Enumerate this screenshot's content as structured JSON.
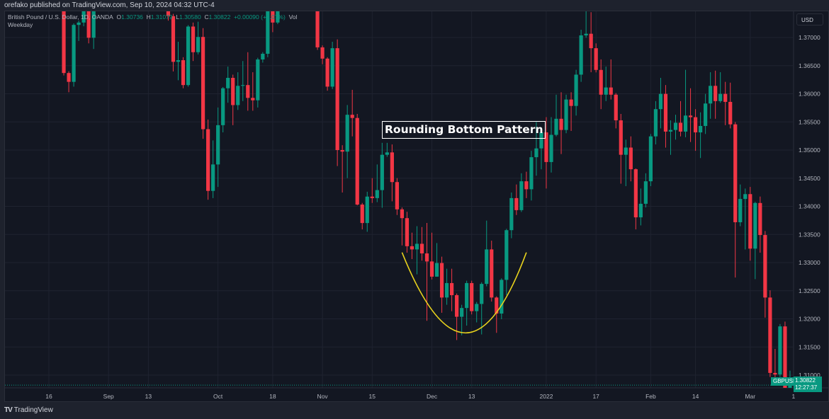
{
  "publisher_line": "orefako published on TradingView.com, Sep 10, 2024 04:32 UTC-4",
  "legend": {
    "symbol_desc": "British Pound / U.S. Dollar, 1D, OANDA",
    "o_label": "O",
    "o": "1.30736",
    "h_label": "H",
    "h": "1.31079",
    "l_label": "L",
    "l": "1.30580",
    "c_label": "C",
    "c": "1.30822",
    "change": "+0.00090 (+0.07%)",
    "vol_label": "Vol",
    "session": "Weekday"
  },
  "currency_button": "USD",
  "symbol_tag": "GBPUSD",
  "last_price": "1.30822",
  "countdown": "12:27:37",
  "annotation": "Rounding Bottom Pattern",
  "brand": "TradingView",
  "colors": {
    "up": "#089981",
    "down": "#f23645",
    "curve": "#e8d21d",
    "background": "#131722",
    "grid": "#1f2330"
  },
  "chart_data": {
    "type": "candlestick",
    "symbol": "GBPUSD",
    "interval": "1D",
    "ylim": [
      1.3072,
      1.3748
    ],
    "y_ticks": [
      "1.37000",
      "1.36500",
      "1.36000",
      "1.35500",
      "1.35000",
      "1.34500",
      "1.34000",
      "1.33500",
      "1.33000",
      "1.32500",
      "1.32000",
      "1.31500",
      "1.31000"
    ],
    "x_ticks": [
      {
        "label": "16",
        "at": -1
      },
      {
        "label": "Sep",
        "at": 11
      },
      {
        "label": "13",
        "at": 19
      },
      {
        "label": "Oct",
        "at": 33
      },
      {
        "label": "18",
        "at": 44
      },
      {
        "label": "Nov",
        "at": 54
      },
      {
        "label": "15",
        "at": 64
      },
      {
        "label": "Dec",
        "at": 76
      },
      {
        "label": "13",
        "at": 84
      },
      {
        "label": "2022",
        "at": 99
      },
      {
        "label": "17",
        "at": 109
      },
      {
        "label": "Feb",
        "at": 120
      },
      {
        "label": "14",
        "at": 129
      },
      {
        "label": "Mar",
        "at": 140
      },
      {
        "label": "1",
        "at": 148.7
      }
    ],
    "grid": true,
    "ohlc": [
      null,
      null,
      [
        1.3752,
        1.3755,
        1.36326,
        1.36369
      ],
      [
        1.36369,
        1.364,
        1.36027,
        1.36212
      ],
      [
        1.36212,
        1.3725,
        1.36127,
        1.37224
      ],
      [
        1.37224,
        1.373,
        1.36939,
        1.37266
      ],
      [
        1.37266,
        1.376,
        1.372,
        1.3752
      ],
      [
        1.3752,
        1.3755,
        1.36896,
        1.36996
      ],
      [
        1.36996,
        1.376,
        1.36796,
        1.3752
      ],
      null,
      null,
      null,
      null,
      null,
      null,
      null,
      null,
      null,
      null,
      null,
      null,
      null,
      null,
      [
        1.3752,
        1.3755,
        1.373,
        1.3738
      ],
      [
        1.3738,
        1.3742,
        1.36397,
        1.36568
      ],
      [
        1.36568,
        1.36924,
        1.3624,
        1.36597
      ],
      [
        1.36597,
        1.3665,
        1.36098,
        1.36155
      ],
      [
        1.36155,
        1.3722,
        1.36127,
        1.37195
      ],
      [
        1.37195,
        1.37266,
        1.36582,
        1.36739
      ],
      [
        1.36739,
        1.37281,
        1.367,
        1.3701
      ],
      [
        1.3701,
        1.37167,
        1.352,
        1.35371
      ],
      [
        1.35371,
        1.35542,
        1.34117,
        1.34274
      ],
      [
        1.34274,
        1.35171,
        1.34146,
        1.34744
      ],
      [
        1.34744,
        1.35756,
        1.34345,
        1.35442
      ],
      [
        1.35442,
        1.3612,
        1.35314,
        1.36098
      ],
      [
        1.36098,
        1.36483,
        1.35841,
        1.36283
      ],
      [
        1.36283,
        1.3634,
        1.35442,
        1.35799
      ],
      [
        1.35799,
        1.36383,
        1.35713,
        1.36141
      ],
      [
        1.36141,
        1.36582,
        1.3587,
        1.36155
      ],
      [
        1.36155,
        1.36739,
        1.35699,
        1.35927
      ],
      [
        1.35927,
        1.36383,
        1.35699,
        1.35884
      ],
      [
        1.35884,
        1.3664,
        1.35756,
        1.3661
      ],
      [
        1.3661,
        1.3674,
        1.36554,
        1.36711
      ],
      [
        1.36711,
        1.376,
        1.3665,
        1.3752
      ],
      [
        1.3752,
        1.3755,
        1.37095,
        1.37266
      ],
      [
        1.37266,
        1.376,
        1.37238,
        1.3752
      ],
      null,
      null,
      null,
      null,
      null,
      null,
      null,
      [
        1.3752,
        1.3755,
        1.3678,
        1.36825
      ],
      [
        1.36825,
        1.3686,
        1.36525,
        1.36625
      ],
      [
        1.36625,
        1.3665,
        1.36055,
        1.36127
      ],
      [
        1.36127,
        1.36924,
        1.36084,
        1.3681
      ],
      [
        1.3681,
        1.36967,
        1.34715,
        1.35
      ],
      [
        1.35,
        1.35086,
        1.34245,
        1.34972
      ],
      [
        1.34972,
        1.358,
        1.34501,
        1.35627
      ],
      [
        1.35627,
        1.3607,
        1.35243,
        1.3557
      ],
      [
        1.3557,
        1.35642,
        1.34017,
        1.34031
      ],
      [
        1.34031,
        1.3406,
        1.3359,
        1.33703
      ],
      [
        1.33703,
        1.34259,
        1.33547,
        1.34173
      ],
      [
        1.34173,
        1.34501,
        1.3406,
        1.34146
      ],
      [
        1.34146,
        1.34744,
        1.34074,
        1.34288
      ],
      [
        1.34288,
        1.35128,
        1.33974,
        1.34916
      ],
      [
        1.34916,
        1.35128,
        1.3488,
        1.34958
      ],
      [
        1.34958,
        1.351,
        1.34089,
        1.34431
      ],
      [
        1.34431,
        1.34501,
        1.33846,
        1.33946
      ],
      [
        1.33946,
        1.3398,
        1.33305,
        1.3379
      ],
      [
        1.3379,
        1.33903,
        1.33176,
        1.33291
      ],
      [
        1.33291,
        1.33532,
        1.33062,
        1.33234
      ],
      [
        1.33234,
        1.33647,
        1.32791,
        1.33334
      ],
      [
        1.33334,
        1.33632,
        1.33034,
        1.33163
      ],
      [
        1.33163,
        1.33705,
        1.31965,
        1.3302
      ],
      [
        1.3302,
        1.33532,
        1.327,
        1.3275
      ],
      [
        1.3275,
        1.33347,
        1.32749,
        1.32992
      ],
      [
        1.32992,
        1.33105,
        1.32108,
        1.32379
      ],
      [
        1.32379,
        1.32891,
        1.3225,
        1.32636
      ],
      [
        1.32636,
        1.32891,
        1.32136,
        1.32421
      ],
      [
        1.32421,
        1.3245,
        1.31623,
        1.32037
      ],
      [
        1.32037,
        1.3225,
        1.31708,
        1.32193
      ],
      [
        1.32193,
        1.32678,
        1.3188,
        1.32636
      ],
      [
        1.32636,
        1.32678,
        1.32079,
        1.32137
      ],
      [
        1.32137,
        1.323,
        1.31937,
        1.32265
      ],
      [
        1.32265,
        1.3265,
        1.31723,
        1.32621
      ],
      [
        1.32621,
        1.33746,
        1.32578,
        1.33234
      ],
      [
        1.33234,
        1.3339,
        1.32307,
        1.32379
      ],
      [
        1.32379,
        1.324,
        1.31751,
        1.32094
      ],
      [
        1.32094,
        1.3272,
        1.31994,
        1.32693
      ],
      [
        1.32693,
        1.336,
        1.32421,
        1.33576
      ],
      [
        1.33576,
        1.34245,
        1.33433,
        1.34146
      ],
      [
        1.34146,
        1.34388,
        1.33846,
        1.33932
      ],
      [
        1.33932,
        1.34587,
        1.339,
        1.34445
      ],
      [
        1.34445,
        1.34615,
        1.34146,
        1.34303
      ],
      [
        1.34303,
        1.34986,
        1.34103,
        1.34873
      ],
      [
        1.34873,
        1.35499,
        1.34544,
        1.35029
      ],
      [
        1.35029,
        1.35385,
        1.34658,
        1.35314
      ],
      [
        1.35314,
        1.35585,
        1.34316,
        1.34787
      ],
      [
        1.34787,
        1.35585,
        1.34601,
        1.3527
      ],
      [
        1.3527,
        1.35984,
        1.35243,
        1.35556
      ],
      [
        1.35556,
        1.36027,
        1.34929,
        1.35357
      ],
      [
        1.35357,
        1.35984,
        1.35299,
        1.35898
      ],
      [
        1.35898,
        1.36027,
        1.3534,
        1.35784
      ],
      [
        1.35784,
        1.36426,
        1.35613,
        1.3634
      ],
      [
        1.3634,
        1.37138,
        1.36212,
        1.37038
      ],
      [
        1.37038,
        1.3752,
        1.36996,
        1.37067
      ],
      [
        1.37067,
        1.3745,
        1.36383,
        1.3681
      ],
      [
        1.3681,
        1.36896,
        1.3638,
        1.36424
      ],
      [
        1.36424,
        1.36611,
        1.35727,
        1.35984
      ],
      [
        1.35984,
        1.36483,
        1.3587,
        1.36112
      ],
      [
        1.36112,
        1.36611,
        1.35898,
        1.35984
      ],
      [
        1.35984,
        1.36013,
        1.35385,
        1.35528
      ],
      [
        1.35528,
        1.35642,
        1.34402,
        1.34916
      ],
      [
        1.34916,
        1.35185,
        1.34359,
        1.35044
      ],
      [
        1.35044,
        1.35243,
        1.34444,
        1.34659
      ],
      [
        1.34659,
        1.34673,
        1.3359,
        1.33804
      ],
      [
        1.33804,
        1.34316,
        1.33661,
        1.34045
      ],
      [
        1.34045,
        1.34587,
        1.3398,
        1.34445
      ],
      [
        1.34445,
        1.35285,
        1.34359,
        1.35243
      ],
      [
        1.35243,
        1.3587,
        1.351,
        1.35727
      ],
      [
        1.35727,
        1.36283,
        1.35385,
        1.35998
      ],
      [
        1.35998,
        1.36155,
        1.35043,
        1.35328
      ],
      [
        1.35328,
        1.35528,
        1.34915,
        1.35357
      ],
      [
        1.35357,
        1.35628,
        1.35185,
        1.35485
      ],
      [
        1.35485,
        1.3587,
        1.35243,
        1.35328
      ],
      [
        1.35328,
        1.36426,
        1.35228,
        1.35613
      ],
      [
        1.35613,
        1.36098,
        1.35143,
        1.35584
      ],
      [
        1.35584,
        1.35727,
        1.34986,
        1.35314
      ],
      [
        1.35314,
        1.3567,
        1.34858,
        1.35428
      ],
      [
        1.35428,
        1.35998,
        1.35285,
        1.35827
      ],
      [
        1.35827,
        1.36383,
        1.35556,
        1.36141
      ],
      [
        1.36141,
        1.36411,
        1.35556,
        1.3587
      ],
      [
        1.3587,
        1.36383,
        1.3584,
        1.35998
      ],
      [
        1.35998,
        1.36212,
        1.35442,
        1.35856
      ],
      [
        1.35856,
        1.36198,
        1.35385,
        1.35457
      ],
      [
        1.35457,
        1.35499,
        1.32735,
        1.33717
      ],
      [
        1.33717,
        1.34388,
        1.33647,
        1.34131
      ],
      [
        1.34131,
        1.34316,
        1.33233,
        1.34217
      ],
      [
        1.34217,
        1.34345,
        1.33034,
        1.33248
      ],
      [
        1.33248,
        1.3408,
        1.32706,
        1.34059
      ],
      [
        1.34059,
        1.34174,
        1.33176,
        1.3349
      ],
      [
        1.3349,
        1.33561,
        1.32022,
        1.32379
      ],
      [
        1.32379,
        1.32507,
        1.30967,
        1.31039
      ],
      [
        1.31039,
        1.31466,
        1.3091,
        1.31011
      ],
      [
        1.31011,
        1.31908,
        1.30967,
        1.31866
      ],
      [
        1.31866,
        1.31951,
        1.306,
        1.30726
      ],
      [
        1.30736,
        1.31079,
        1.3058,
        1.30822
      ]
    ],
    "annotations": [
      {
        "type": "text-box",
        "text_ref": "annotation"
      },
      {
        "type": "curve",
        "from_index": 70,
        "to_index": 95,
        "bottom_index": 83,
        "bottom_price": 1.3175,
        "ends_price": 1.3318
      }
    ]
  }
}
